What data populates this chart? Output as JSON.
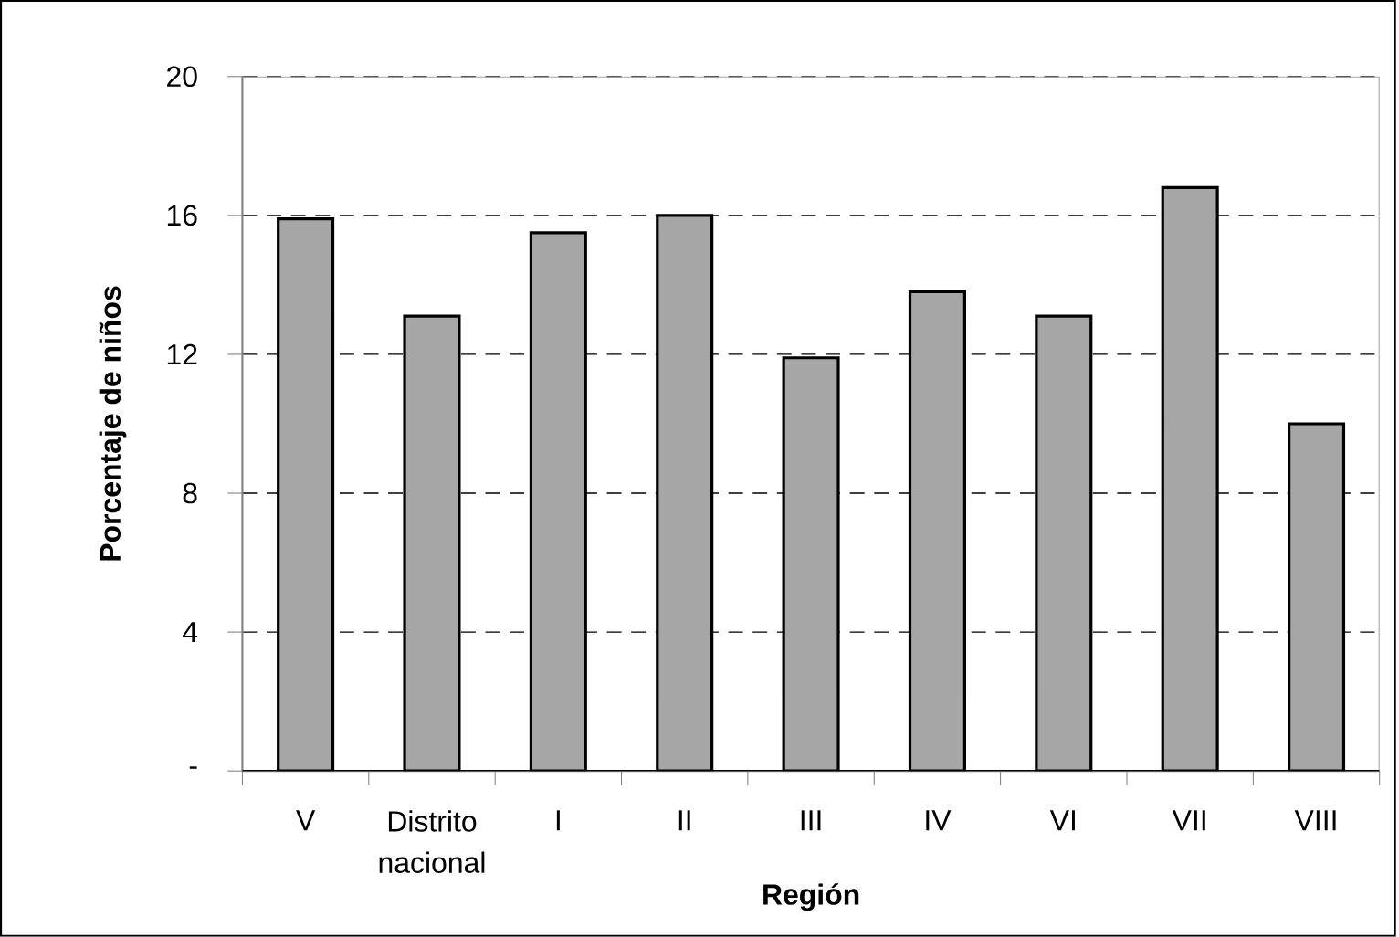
{
  "chart_data": {
    "type": "bar",
    "xlabel": "Región",
    "ylabel": "Porcentaje de niños",
    "categories": [
      "V",
      "Distrito nacional",
      "I",
      "II",
      "III",
      "IV",
      "VI",
      "VII",
      "VIII"
    ],
    "values": [
      15.9,
      13.1,
      15.5,
      16.0,
      11.9,
      13.8,
      13.1,
      16.8,
      10.0
    ],
    "color": "#a6a6a6",
    "ylim": [
      0,
      20
    ],
    "yticks": [
      {
        "value": 0,
        "label": "-"
      },
      4,
      8,
      12,
      16,
      20
    ],
    "grid": "y"
  }
}
